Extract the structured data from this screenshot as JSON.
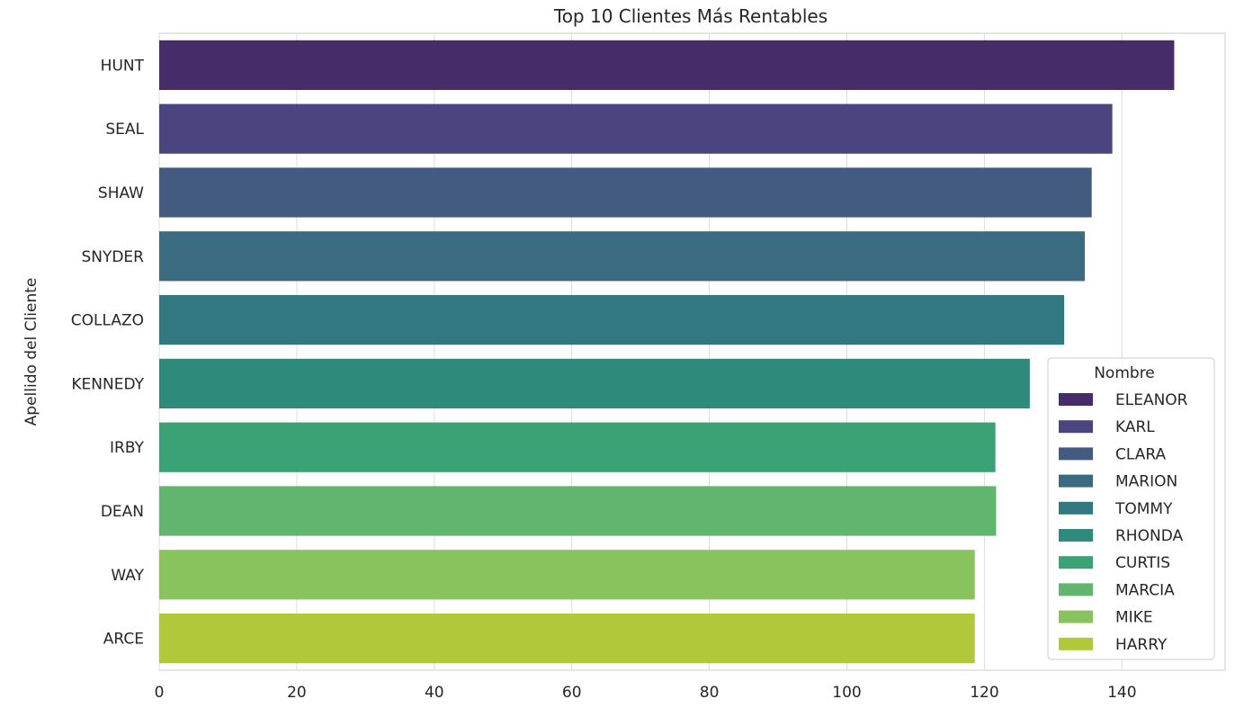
{
  "chart_data": {
    "type": "bar",
    "orientation": "horizontal",
    "title": "Top 10 Clientes Más Rentables",
    "xlabel": "",
    "ylabel": "Apellido del Cliente",
    "xlim": [
      0,
      155
    ],
    "xticks": [
      0,
      20,
      40,
      60,
      80,
      100,
      120,
      140
    ],
    "grid": true,
    "legend_placement": "lower-right",
    "legend_title": "Nombre",
    "categories": [
      "HUNT",
      "SEAL",
      "SHAW",
      "SNYDER",
      "COLLAZO",
      "KENNEDY",
      "IRBY",
      "DEAN",
      "WAY",
      "ARCE"
    ],
    "hue_names": [
      "ELEANOR",
      "KARL",
      "CLARA",
      "MARION",
      "TOMMY",
      "RHONDA",
      "CURTIS",
      "MARCIA",
      "MIKE",
      "HARRY"
    ],
    "values": [
      147.6,
      138.6,
      135.6,
      134.6,
      131.6,
      126.6,
      121.6,
      121.7,
      118.6,
      118.6
    ],
    "colors": [
      "#472c6a",
      "#4a457e",
      "#435b81",
      "#3b6b80",
      "#327880",
      "#2e8b7c",
      "#3ba276",
      "#61b56e",
      "#88c35d",
      "#b2c83b"
    ]
  }
}
